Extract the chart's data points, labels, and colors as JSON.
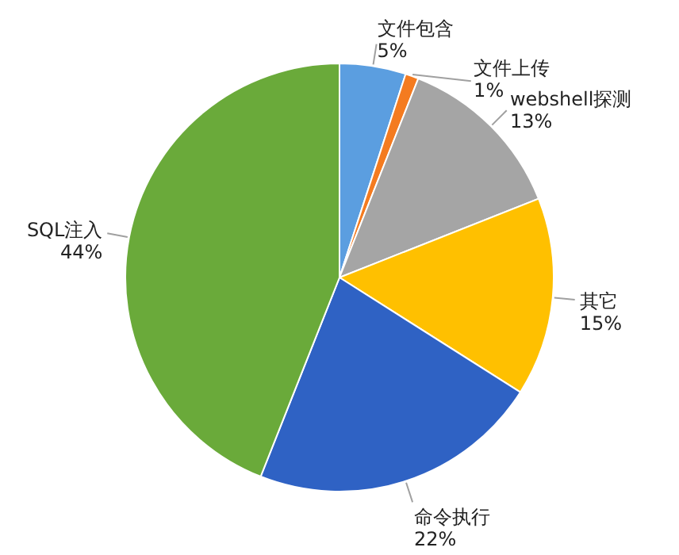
{
  "chart_data": {
    "type": "pie",
    "categories": [
      "文件包含",
      "文件上传",
      "webshell探测",
      "其它",
      "命令执行",
      "SQL注入"
    ],
    "values": [
      5,
      1,
      13,
      15,
      22,
      44
    ],
    "colors": [
      "#5b9ee0",
      "#f47b20",
      "#a5a5a5",
      "#ffc000",
      "#2f62c4",
      "#6aaa3a"
    ],
    "value_labels": [
      "5%",
      "1%",
      "13%",
      "15%",
      "22%",
      "44%"
    ]
  }
}
